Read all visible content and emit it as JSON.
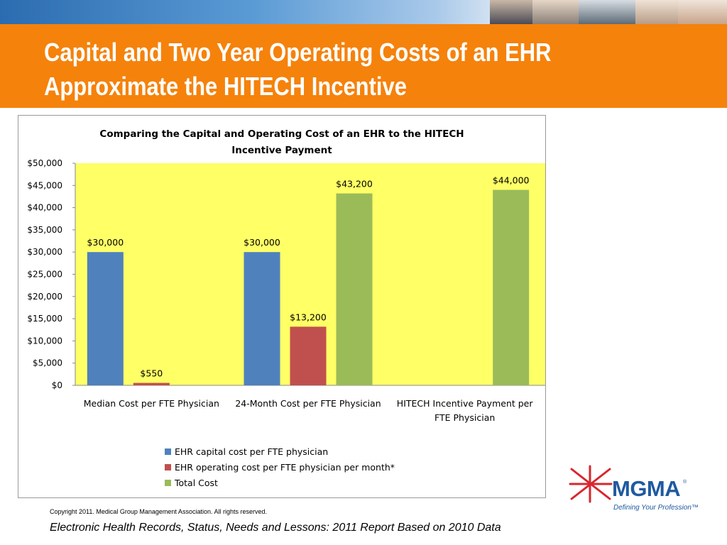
{
  "slide": {
    "title_line1": "Capital and Two Year Operating Costs of an EHR",
    "title_line2": "Approximate the HITECH Incentive",
    "copyright": "Copyright 2011. Medical Group Management Association. All rights reserved.",
    "source": "Electronic Health Records, Status, Needs and Lessons: 2011 Report Based on 2010 Data",
    "title_band_color": "#f5820b"
  },
  "logo": {
    "text": "MGMA",
    "registered_mark": "®",
    "tagline": "Defining Your Profession™",
    "text_color": "#1f5aa0",
    "mark_color": "#d9262e"
  },
  "chart_data": {
    "type": "bar",
    "title_line1": "Comparing the Capital and Operating Cost of an EHR to the HITECH",
    "title_line2": "Incentive Payment",
    "categories": [
      [
        "Median Cost per FTE Physician"
      ],
      [
        "24-Month Cost per FTE Physician"
      ],
      [
        "HITECH Incentive Payment per",
        "FTE Physician"
      ]
    ],
    "series": [
      {
        "name": "EHR capital cost per FTE physician",
        "color": "#4f81bd",
        "values": [
          30000,
          30000,
          null
        ],
        "labels": [
          "$30,000",
          "$30,000",
          ""
        ]
      },
      {
        "name": "EHR operating cost per FTE physician per month*",
        "color": "#c0504d",
        "values": [
          550,
          13200,
          null
        ],
        "labels": [
          "$550",
          "$13,200",
          ""
        ]
      },
      {
        "name": "Total Cost",
        "color": "#9bbb59",
        "values": [
          null,
          43200,
          44000
        ],
        "labels": [
          "",
          "$43,200",
          "$44,000"
        ]
      }
    ],
    "ylim": [
      0,
      50000
    ],
    "yticks": [
      0,
      5000,
      10000,
      15000,
      20000,
      25000,
      30000,
      35000,
      40000,
      45000,
      50000
    ],
    "ytick_labels": [
      "$0",
      "$5,000",
      "$10,000",
      "$15,000",
      "$20,000",
      "$25,000",
      "$30,000",
      "$35,000",
      "$40,000",
      "$45,000",
      "$50,000"
    ],
    "plot_background": "#ffff66",
    "grid": false,
    "legend_position": "bottom"
  }
}
